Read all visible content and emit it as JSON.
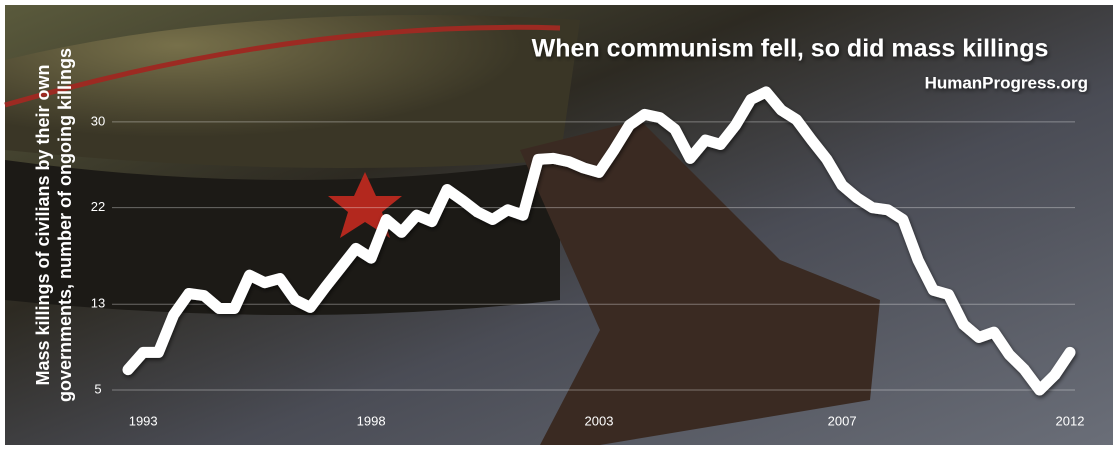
{
  "chart_data": {
    "type": "line",
    "title": "When communism fell, so did mass killings",
    "subtitle": "HumanProgress.org",
    "ylabel": [
      "Mass killings of civilians by their own",
      "governments, number of ongoing killings"
    ],
    "categories": [
      null,
      "1993",
      null,
      null,
      null,
      null,
      null,
      null,
      null,
      null,
      null,
      null,
      null,
      null,
      null,
      null,
      "1998",
      null,
      null,
      null,
      null,
      null,
      null,
      null,
      null,
      null,
      null,
      null,
      null,
      null,
      null,
      "2003",
      null,
      null,
      null,
      null,
      null,
      null,
      null,
      null,
      null,
      null,
      null,
      null,
      null,
      null,
      null,
      "2007",
      null,
      null,
      null,
      null,
      null,
      null,
      null,
      null,
      null,
      null,
      null,
      null,
      null,
      null,
      "2012"
    ],
    "series": [
      {
        "color": "#ffffff",
        "values": [
          6.9,
          8.5,
          8.5,
          12.0,
          14.0,
          13.8,
          12.6,
          12.6,
          15.7,
          15.0,
          15.4,
          13.4,
          12.7,
          14.6,
          16.4,
          18.2,
          17.3,
          20.9,
          19.7,
          21.3,
          20.7,
          23.7,
          22.7,
          21.6,
          20.9,
          21.8,
          21.3,
          26.5,
          26.6,
          26.3,
          25.7,
          25.3,
          27.4,
          29.7,
          30.7,
          30.4,
          29.3,
          26.6,
          28.3,
          27.9,
          29.7,
          32.1,
          32.8,
          31.1,
          30.2,
          28.3,
          26.5,
          24.1,
          22.9,
          22.0,
          21.8,
          20.9,
          17.1,
          14.3,
          13.9,
          11.1,
          9.9,
          10.4,
          8.3,
          6.9,
          5.0,
          6.4,
          8.5
        ]
      }
    ],
    "ylim": [
      4,
      34
    ],
    "yticks": [
      5,
      13,
      22,
      30
    ],
    "grid": true
  }
}
